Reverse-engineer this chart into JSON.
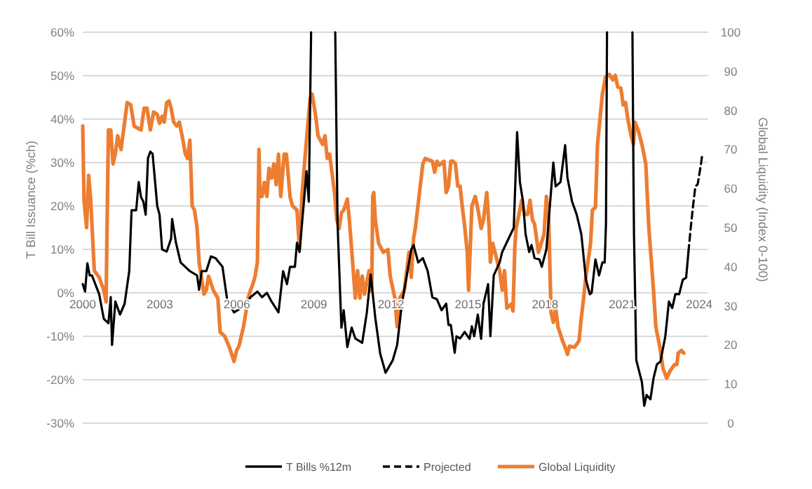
{
  "chart_data": {
    "type": "line",
    "ylabel": "T Bill Issuance (%ch)",
    "y2label": "Global Liquidity (Index 0-100)",
    "xlim": [
      2000,
      2024.35
    ],
    "xticks": [
      2000,
      2003,
      2006,
      2009,
      2012,
      2015,
      2018,
      2021,
      2024
    ],
    "ylim": [
      -30,
      60
    ],
    "yticks": [
      {
        "value": -30,
        "label": "-30%"
      },
      {
        "value": -20,
        "label": "-20%"
      },
      {
        "value": -10,
        "label": "-10%"
      },
      {
        "value": 0,
        "label": "0%"
      },
      {
        "value": 10,
        "label": "10%"
      },
      {
        "value": 20,
        "label": "20%"
      },
      {
        "value": 30,
        "label": "30%"
      },
      {
        "value": 40,
        "label": "40%"
      },
      {
        "value": 50,
        "label": "50%"
      },
      {
        "value": 60,
        "label": "60%"
      }
    ],
    "y2lim": [
      0,
      100
    ],
    "y2ticks": [
      0,
      10,
      20,
      30,
      40,
      50,
      60,
      70,
      80,
      90,
      100
    ],
    "grid": "y",
    "legend": "bottom",
    "series": [
      {
        "name": "T Bills %12m",
        "color": "#000000",
        "line_style": "solid",
        "axis": "y",
        "x": [
          2000.0,
          2000.09,
          2000.18,
          2000.27,
          2000.36,
          2000.64,
          2000.82,
          2001.0,
          2001.09,
          2001.14,
          2001.27,
          2001.45,
          2001.63,
          2001.81,
          2001.9,
          2002.08,
          2002.18,
          2002.27,
          2002.36,
          2002.45,
          2002.54,
          2002.63,
          2002.72,
          2002.9,
          2002.99,
          2003.09,
          2003.27,
          2003.44,
          2003.48,
          2003.63,
          2003.81,
          2003.99,
          2004.17,
          2004.45,
          2004.53,
          2004.63,
          2004.81,
          2004.99,
          2005.17,
          2005.44,
          2005.62,
          2005.89,
          2006.17,
          2006.35,
          2006.53,
          2006.8,
          2006.98,
          2007.17,
          2007.35,
          2007.62,
          2007.8,
          2007.95,
          2008.07,
          2008.26,
          2008.34,
          2008.44,
          2008.61,
          2008.71,
          2008.8,
          2008.89,
          2009.3,
          2009.83,
          2009.92,
          2010.07,
          2010.16,
          2010.3,
          2010.47,
          2010.61,
          2010.88,
          2011.06,
          2011.21,
          2011.39,
          2011.58,
          2011.79,
          2012.07,
          2012.24,
          2012.42,
          2012.79,
          2012.88,
          2013.06,
          2013.24,
          2013.43,
          2013.61,
          2013.79,
          2013.97,
          2014.15,
          2014.24,
          2014.33,
          2014.48,
          2014.55,
          2014.69,
          2014.87,
          2015.06,
          2015.15,
          2015.24,
          2015.38,
          2015.51,
          2015.6,
          2015.69,
          2015.78,
          2015.87,
          2016.0,
          2016.15,
          2016.23,
          2016.33,
          2016.78,
          2016.91,
          2017.02,
          2017.14,
          2017.24,
          2017.38,
          2017.47,
          2017.59,
          2017.78,
          2017.87,
          2018.05,
          2018.32,
          2018.41,
          2018.6,
          2018.78,
          2018.87,
          2019.05,
          2019.23,
          2019.41,
          2019.59,
          2019.74,
          2019.81,
          2019.96,
          2020.1,
          2020.23,
          2020.32,
          2020.37,
          2020.41,
          2020.9,
          2021.4,
          2021.44,
          2021.46,
          2021.55,
          2021.77,
          2021.86,
          2021.95,
          2022.1,
          2022.22,
          2022.35,
          2022.49,
          2022.68,
          2022.82,
          2022.95,
          2023.07,
          2023.22,
          2023.36,
          2023.49,
          2023.58
        ],
        "values": [
          2,
          0.3,
          6.8,
          4,
          4,
          -0.3,
          -6,
          -7,
          -1,
          -12,
          -2,
          -5,
          -2.5,
          5,
          19,
          19,
          25.5,
          22,
          21,
          18,
          31,
          32.5,
          32,
          20,
          18,
          10,
          9.5,
          12.5,
          17,
          11.5,
          7,
          6,
          5,
          4,
          0.7,
          5,
          5,
          8.4,
          8,
          6,
          -1.5,
          -4.5,
          -3.5,
          -2.5,
          -1,
          0.3,
          -1,
          0,
          -2,
          -4.5,
          5,
          2,
          6,
          6,
          11.5,
          9.4,
          21,
          28,
          21,
          60,
          null,
          60,
          16,
          -8,
          -4,
          -12.5,
          -8,
          -10.5,
          -11.5,
          -4.5,
          4.2,
          -5.8,
          -14,
          -18.4,
          -15.5,
          -12,
          -2.7,
          10,
          11,
          7,
          8,
          5,
          -1,
          -1.5,
          -4,
          -2.5,
          -7.4,
          -7.4,
          -13.8,
          -10,
          -10.5,
          -9,
          -10.6,
          -7.7,
          -10,
          -5,
          -10.6,
          -2.5,
          -0.3,
          2,
          -10,
          4,
          6,
          7,
          9.4,
          15,
          37,
          25.5,
          21,
          13.5,
          9.4,
          11,
          8,
          7.7,
          6,
          10,
          30,
          24.5,
          25.5,
          34,
          26.5,
          21,
          18,
          13.5,
          3,
          -0.3,
          0,
          7.7,
          4,
          7,
          7,
          16,
          60,
          null,
          60,
          26.5,
          13.5,
          -15.5,
          -20.6,
          -26,
          -23.5,
          -24.5,
          -19.7,
          -16.5,
          -15.8,
          -10,
          -2,
          -3.5,
          -0.3,
          -0.3,
          3,
          3.5,
          9.4
        ]
      },
      {
        "name": "Projected",
        "color": "#000000",
        "line_style": "dashed",
        "axis": "y",
        "x": [
          2023.58,
          2023.67,
          2023.76,
          2023.85,
          2023.94,
          2024.07,
          2024.12
        ],
        "values": [
          9.4,
          15,
          20,
          24.5,
          25,
          29.7,
          32
        ]
      },
      {
        "name": "Global Liquidity",
        "color": "#ed7d31",
        "line_style": "solid",
        "axis": "y2",
        "x": [
          2000.0,
          2000.05,
          2000.15,
          2000.23,
          2000.31,
          2000.38,
          2000.45,
          2000.64,
          2000.82,
          2000.91,
          2000.94,
          2001.0,
          2001.09,
          2001.18,
          2001.27,
          2001.36,
          2001.49,
          2001.63,
          2001.73,
          2001.87,
          2002.0,
          2002.18,
          2002.27,
          2002.39,
          2002.5,
          2002.63,
          2002.76,
          2002.9,
          2002.99,
          2003.09,
          2003.17,
          2003.27,
          2003.36,
          2003.44,
          2003.54,
          2003.66,
          2003.76,
          2003.9,
          2003.99,
          2004.08,
          2004.17,
          2004.26,
          2004.35,
          2004.45,
          2004.53,
          2004.72,
          2004.81,
          2004.9,
          2005.08,
          2005.26,
          2005.35,
          2005.53,
          2005.71,
          2005.89,
          2005.99,
          2006.08,
          2006.17,
          2006.26,
          2006.35,
          2006.44,
          2006.53,
          2006.62,
          2006.71,
          2006.8,
          2006.86,
          2006.9,
          2006.98,
          2007.07,
          2007.17,
          2007.25,
          2007.35,
          2007.44,
          2007.53,
          2007.62,
          2007.71,
          2007.84,
          2007.93,
          2008.07,
          2008.16,
          2008.34,
          2008.44,
          2008.53,
          2008.71,
          2008.85,
          2008.93,
          2009.07,
          2009.16,
          2009.25,
          2009.34,
          2009.43,
          2009.52,
          2009.61,
          2009.7,
          2009.8,
          2009.89,
          2009.98,
          2010.07,
          2010.16,
          2010.3,
          2010.38,
          2010.52,
          2010.61,
          2010.7,
          2010.79,
          2010.88,
          2010.97,
          2011.15,
          2011.25,
          2011.29,
          2011.33,
          2011.39,
          2011.52,
          2011.7,
          2011.88,
          2011.97,
          2012.15,
          2012.24,
          2012.34,
          2012.52,
          2012.7,
          2012.79,
          2012.88,
          2012.95,
          2013.24,
          2013.33,
          2013.61,
          2013.7,
          2013.79,
          2013.88,
          2014.06,
          2014.15,
          2014.24,
          2014.33,
          2014.42,
          2014.51,
          2014.6,
          2014.69,
          2014.79,
          2014.86,
          2014.97,
          2015.02,
          2015.15,
          2015.28,
          2015.39,
          2015.51,
          2015.6,
          2015.73,
          2015.82,
          2015.87,
          2015.96,
          2016.05,
          2016.23,
          2016.33,
          2016.42,
          2016.51,
          2016.69,
          2016.75,
          2016.82,
          2016.87,
          2017.09,
          2017.2,
          2017.32,
          2017.41,
          2017.51,
          2017.59,
          2017.74,
          2017.96,
          2018.05,
          2018.14,
          2018.23,
          2018.32,
          2018.41,
          2018.5,
          2018.68,
          2018.78,
          2018.87,
          2018.95,
          2019.14,
          2019.32,
          2019.41,
          2019.5,
          2019.59,
          2019.77,
          2019.84,
          2019.96,
          2020.04,
          2020.23,
          2020.35,
          2020.5,
          2020.64,
          2020.73,
          2020.83,
          2020.95,
          2021.04,
          2021.13,
          2021.22,
          2021.35,
          2021.44,
          2021.5,
          2021.62,
          2021.77,
          2021.92,
          2022.04,
          2022.22,
          2022.31,
          2022.46,
          2022.59,
          2022.73,
          2022.86,
          2023.04,
          2023.13,
          2023.18,
          2023.31,
          2023.4
        ],
        "values": [
          76,
          57,
          50,
          63.4,
          57,
          48,
          39,
          37.3,
          34,
          31,
          47,
          75,
          75,
          66.3,
          69,
          73.5,
          70,
          77,
          82,
          81.4,
          76,
          75.3,
          75,
          80.6,
          80.6,
          75,
          79.6,
          79,
          76.7,
          78.5,
          77,
          82,
          82.4,
          80.6,
          77,
          76,
          77,
          72.4,
          69,
          67.7,
          72.4,
          55.6,
          54.5,
          50,
          41.2,
          33,
          34,
          37.6,
          34,
          32,
          23.3,
          22.2,
          19.4,
          15.8,
          18.6,
          19.7,
          22.2,
          24.7,
          28.3,
          32,
          34,
          35.5,
          37.6,
          41.2,
          70,
          58,
          58,
          61.6,
          58,
          65.2,
          62.7,
          66.3,
          61,
          68.8,
          58,
          68.8,
          68.8,
          58,
          55.6,
          54.5,
          44.4,
          58,
          72.4,
          83,
          84.2,
          78.5,
          73.5,
          72.4,
          71.3,
          73.5,
          67.7,
          68.8,
          64.2,
          59,
          52,
          49.8,
          53.8,
          54.5,
          57.3,
          52,
          40,
          32,
          39,
          32,
          37.6,
          33,
          39,
          33.7,
          58,
          59,
          52,
          46,
          43.7,
          44.4,
          37.6,
          32,
          24.7,
          32,
          34,
          43.7,
          37.3,
          47.3,
          50,
          66.3,
          67.7,
          67,
          64.2,
          67,
          66,
          67,
          59,
          60.6,
          67,
          67,
          66.3,
          60.6,
          60.6,
          54.5,
          50.9,
          43.7,
          34,
          55.6,
          58,
          54.5,
          49.8,
          52,
          59,
          50,
          41.2,
          46,
          43.7,
          39,
          34,
          39,
          29.4,
          30.5,
          28.7,
          44.8,
          49.8,
          57,
          53.4,
          53.4,
          57,
          52,
          50.9,
          43.7,
          48.4,
          58,
          52,
          28.3,
          25.8,
          29.4,
          24.7,
          21,
          19.4,
          17.6,
          19.7,
          19.4,
          21,
          27,
          32,
          37.6,
          46,
          54.5,
          55.2,
          71.3,
          84.2,
          88.5,
          89.2,
          87.8,
          89,
          86,
          85.7,
          81.4,
          82,
          77.8,
          73.5,
          71.3,
          77,
          75,
          71.3,
          66.3,
          49.8,
          34,
          24.7,
          19.7,
          14,
          11.5,
          13.3,
          15,
          15,
          17.9,
          18.6,
          17.9
        ]
      }
    ]
  }
}
